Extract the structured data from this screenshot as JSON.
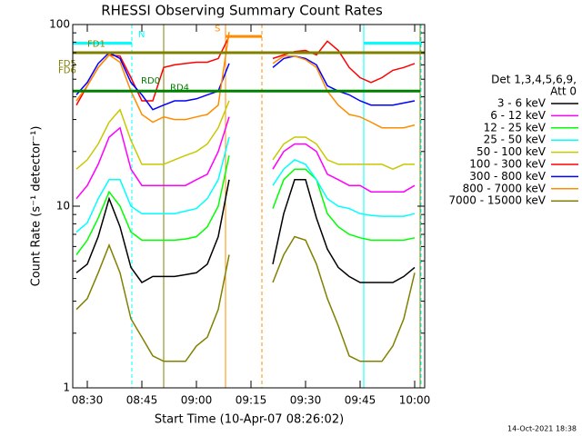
{
  "chart_data": {
    "type": "line",
    "title": "RHESSI Observing Summary Count Rates",
    "x_label": "Start Time (10-Apr-07 08:26:02)",
    "y_label": "Count Rate (s⁻¹ detector⁻¹)",
    "footer": "14-Oct-2021 18:38",
    "legend_title": [
      "Det 1,3,4,5,6,9,",
      "Att 0"
    ],
    "log_y": true,
    "xlim": [
      506,
      602.75
    ],
    "xticks": [
      {
        "value": 510,
        "label": "08:30"
      },
      {
        "value": 525,
        "label": "08:45"
      },
      {
        "value": 540,
        "label": "09:00"
      },
      {
        "value": 555,
        "label": "09:15"
      },
      {
        "value": 570,
        "label": "09:30"
      },
      {
        "value": 585,
        "label": "09:45"
      },
      {
        "value": 600,
        "label": "10:00"
      }
    ],
    "ylim": [
      1,
      100
    ],
    "yticks": [
      1,
      10,
      100
    ],
    "yminorticks": [
      2,
      3,
      4,
      5,
      6,
      7,
      8,
      9,
      20,
      30,
      40,
      50,
      60,
      70,
      80,
      90
    ],
    "x": [
      507,
      510,
      513,
      516,
      519,
      522,
      525,
      528,
      531,
      534,
      537,
      540,
      543,
      546,
      549,
      552,
      555,
      558,
      561,
      564,
      567,
      570,
      573,
      576,
      579,
      582,
      585,
      588,
      591,
      594,
      597,
      600
    ],
    "series": [
      {
        "name": "3 - 6 keV",
        "color": "#000000",
        "values": [
          4.3,
          4.8,
          6.8,
          11,
          7.7,
          4.6,
          3.8,
          4.1,
          4.1,
          4.1,
          4.2,
          4.3,
          4.8,
          6.8,
          14,
          null,
          null,
          null,
          4.8,
          9.1,
          14,
          14,
          8.6,
          5.8,
          4.6,
          4.1,
          3.8,
          3.8,
          3.8,
          3.8,
          4.1,
          4.6
        ]
      },
      {
        "name": "6 - 12 keV",
        "color": "#ff00ff",
        "values": [
          11,
          13,
          17,
          24,
          27,
          16,
          13,
          13,
          13,
          13,
          13,
          14,
          15,
          20,
          31,
          null,
          null,
          null,
          16,
          20,
          22,
          22,
          20,
          15,
          14,
          13,
          13,
          12,
          12,
          12,
          12,
          13
        ]
      },
      {
        "name": "12 - 25 keV",
        "color": "#00ff00",
        "values": [
          5.4,
          6.5,
          8.6,
          12,
          10,
          7.2,
          6.5,
          6.5,
          6.5,
          6.5,
          6.6,
          6.8,
          7.7,
          10,
          19,
          null,
          null,
          null,
          9.7,
          14,
          16,
          16,
          14,
          9.1,
          7.7,
          7.0,
          6.7,
          6.5,
          6.5,
          6.5,
          6.5,
          6.7
        ]
      },
      {
        "name": "25 - 50 keV",
        "color": "#00ffff",
        "values": [
          7.2,
          8.1,
          11,
          14,
          14,
          10,
          9.1,
          9.1,
          9.1,
          9.1,
          9.4,
          9.7,
          11,
          14,
          24,
          null,
          null,
          null,
          13,
          16,
          18,
          17,
          14,
          11,
          10,
          9.7,
          9.1,
          8.9,
          8.8,
          8.8,
          8.8,
          9.1
        ]
      },
      {
        "name": "50 - 100 keV",
        "color": "#c8c800",
        "values": [
          16,
          18,
          22,
          29,
          34,
          23,
          17,
          17,
          17,
          18,
          19,
          20,
          22,
          27,
          38,
          null,
          null,
          null,
          18,
          22,
          24,
          24,
          22,
          18,
          17,
          17,
          17,
          17,
          17,
          16,
          17,
          17
        ]
      },
      {
        "name": "100 - 300 keV",
        "color": "#ff0000",
        "values": [
          36,
          46,
          58,
          68,
          67,
          51,
          38,
          38,
          58,
          60,
          61,
          62,
          62,
          65,
          86,
          null,
          null,
          null,
          65,
          68,
          71,
          72,
          68,
          81,
          72,
          58,
          51,
          48,
          51,
          56,
          58,
          61
        ]
      },
      {
        "name": "300 - 800 keV",
        "color": "#0000ff",
        "values": [
          41,
          48,
          61,
          70,
          65,
          48,
          41,
          34,
          36,
          38,
          38,
          39,
          41,
          43,
          61,
          null,
          null,
          null,
          58,
          65,
          67,
          65,
          60,
          46,
          43,
          41,
          38,
          36,
          36,
          36,
          37,
          38
        ]
      },
      {
        "name": "800 - 7000 keV",
        "color": "#ff8c00",
        "values": [
          38,
          46,
          58,
          68,
          62,
          43,
          32,
          29,
          31,
          30,
          30,
          31,
          32,
          36,
          91,
          null,
          null,
          null,
          61,
          67,
          67,
          64,
          58,
          43,
          36,
          32,
          31,
          29,
          27,
          27,
          27,
          28
        ]
      },
      {
        "name": "7000 - 15000 keV",
        "color": "#808000",
        "values": [
          2.7,
          3.1,
          4.3,
          6.1,
          4.3,
          2.4,
          1.9,
          1.5,
          1.4,
          1.4,
          1.4,
          1.7,
          1.9,
          2.7,
          5.4,
          null,
          null,
          null,
          3.8,
          5.4,
          6.8,
          6.5,
          4.8,
          3.1,
          2.2,
          1.5,
          1.4,
          1.4,
          1.4,
          1.7,
          2.4,
          4.3
        ]
      }
    ],
    "flags": [
      {
        "x": [
          506,
          602.75
        ],
        "y": 70,
        "color": "#808000"
      },
      {
        "x": [
          506,
          522.25
        ],
        "y": 79,
        "color": "#00ffff"
      },
      {
        "x": [
          586,
          602
        ],
        "y": 79,
        "color": "#00ffff"
      },
      {
        "x": [
          548,
          558
        ],
        "y": 86,
        "color": "#ff8c00"
      },
      {
        "x": [
          506,
          601.5
        ],
        "y": 43,
        "color": "#008000"
      }
    ],
    "vlines": [
      {
        "x": 522.25,
        "color": "#00ffff",
        "dashed": true
      },
      {
        "x": 531,
        "color": "#808000",
        "dashed": false
      },
      {
        "x": 548,
        "color": "#ff8c00",
        "dashed": false
      },
      {
        "x": 558,
        "color": "#ff8c00",
        "dashed": true
      },
      {
        "x": 586,
        "color": "#00ffff",
        "dashed": false
      },
      {
        "x": 601.5,
        "color": "#808000",
        "dashed": false
      },
      {
        "x": 601.75,
        "color": "#00ffff",
        "dashed": true
      }
    ],
    "annotations": [
      {
        "text": "FD1",
        "x": 510,
        "y": 78,
        "color": "#808000"
      },
      {
        "text": "N",
        "x": 524,
        "y": 88,
        "color": "#00ffff"
      },
      {
        "text": "S",
        "x": 545,
        "y": 95,
        "color": "#ff8c00"
      },
      {
        "text": "FD5",
        "x": 502,
        "y": 61,
        "color": "#808000"
      },
      {
        "text": "FD6",
        "x": 502,
        "y": 56,
        "color": "#808000"
      },
      {
        "text": "RD0",
        "x": 524.75,
        "y": 49,
        "color": "#008000"
      },
      {
        "text": "RD4",
        "x": 532.75,
        "y": 45,
        "color": "#008000"
      }
    ]
  }
}
